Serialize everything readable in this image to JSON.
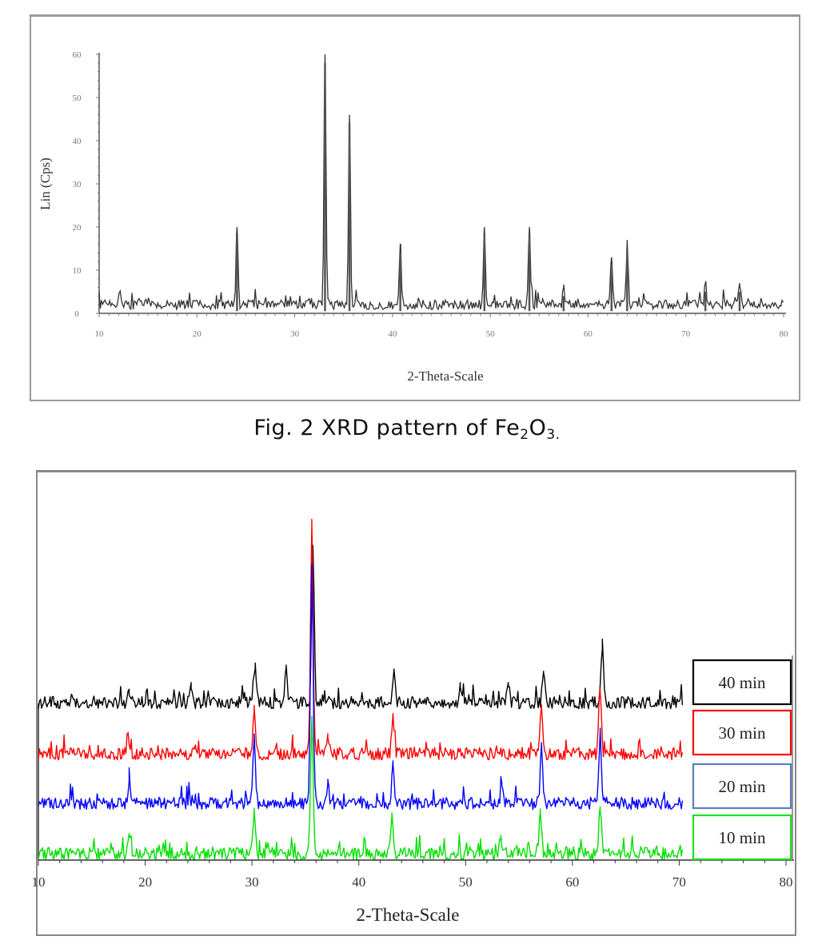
{
  "figure_caption": {
    "prefix": "Fig. 2 XRD pattern of Fe",
    "sub1": "2",
    "mid": "O",
    "sub2": "3."
  },
  "chart_data": [
    {
      "type": "line",
      "title": "",
      "xlabel": "2-Theta-Scale",
      "ylabel": "Lin (Cps)",
      "xlim": [
        10,
        80
      ],
      "ylim": [
        0,
        60
      ],
      "x_ticks": [
        "10",
        "20",
        "30",
        "40",
        "50",
        "60",
        "70",
        "80"
      ],
      "y_ticks": [
        "0",
        "10",
        "20",
        "30",
        "40",
        "50",
        "60"
      ],
      "grid": false,
      "color": "#333333",
      "baseline": 2,
      "peaks": [
        {
          "x": 24.1,
          "y": 18
        },
        {
          "x": 33.1,
          "y": 58
        },
        {
          "x": 35.6,
          "y": 44
        },
        {
          "x": 40.8,
          "y": 14
        },
        {
          "x": 49.4,
          "y": 18
        },
        {
          "x": 54.0,
          "y": 18
        },
        {
          "x": 57.5,
          "y": 4
        },
        {
          "x": 62.4,
          "y": 11
        },
        {
          "x": 64.0,
          "y": 15
        },
        {
          "x": 72.0,
          "y": 5
        },
        {
          "x": 75.5,
          "y": 5
        }
      ]
    },
    {
      "type": "line",
      "title": "",
      "xlabel": "2-Theta-Scale",
      "ylabel": "",
      "xlim": [
        10,
        80
      ],
      "x_ticks": [
        "10",
        "20",
        "30",
        "40",
        "50",
        "60",
        "70",
        "80"
      ],
      "grid": false,
      "legend_position": "right, stacked boxes beside each trace",
      "series": [
        {
          "name": "40 min",
          "color": "#000000",
          "offset_level": 4,
          "peaks": [
            {
              "x": 18.5,
              "y": 0.6
            },
            {
              "x": 24.3,
              "y": 0.9
            },
            {
              "x": 30.3,
              "y": 1.5
            },
            {
              "x": 33.2,
              "y": 1.6
            },
            {
              "x": 35.7,
              "y": 6.9
            },
            {
              "x": 43.3,
              "y": 1.5
            },
            {
              "x": 49.5,
              "y": 0.9
            },
            {
              "x": 54.0,
              "y": 0.9
            },
            {
              "x": 57.3,
              "y": 1.4
            },
            {
              "x": 62.8,
              "y": 2.4
            }
          ]
        },
        {
          "name": "30 min",
          "color": "#ff0000",
          "offset_level": 3,
          "peaks": [
            {
              "x": 18.4,
              "y": 0.9
            },
            {
              "x": 30.2,
              "y": 1.9
            },
            {
              "x": 35.6,
              "y": 10.1
            },
            {
              "x": 37.1,
              "y": 0.9
            },
            {
              "x": 43.2,
              "y": 1.8
            },
            {
              "x": 57.1,
              "y": 2.1
            },
            {
              "x": 62.6,
              "y": 2.9
            }
          ]
        },
        {
          "name": "20 min",
          "color": "#0000ff",
          "offset_level": 2,
          "peaks": [
            {
              "x": 18.5,
              "y": 1.0
            },
            {
              "x": 30.2,
              "y": 2.9
            },
            {
              "x": 35.6,
              "y": 10.7
            },
            {
              "x": 37.1,
              "y": 0.9
            },
            {
              "x": 43.2,
              "y": 1.9
            },
            {
              "x": 53.4,
              "y": 0.9
            },
            {
              "x": 57.1,
              "y": 2.6
            },
            {
              "x": 62.6,
              "y": 3.2
            }
          ]
        },
        {
          "name": "10 min",
          "color": "#00e000",
          "offset_level": 1,
          "peaks": [
            {
              "x": 18.5,
              "y": 0.9
            },
            {
              "x": 30.2,
              "y": 1.8
            },
            {
              "x": 35.6,
              "y": 5.9
            },
            {
              "x": 43.1,
              "y": 1.7
            },
            {
              "x": 53.3,
              "y": 0.6
            },
            {
              "x": 57.0,
              "y": 2.0
            },
            {
              "x": 62.6,
              "y": 2.1
            }
          ]
        }
      ]
    }
  ]
}
